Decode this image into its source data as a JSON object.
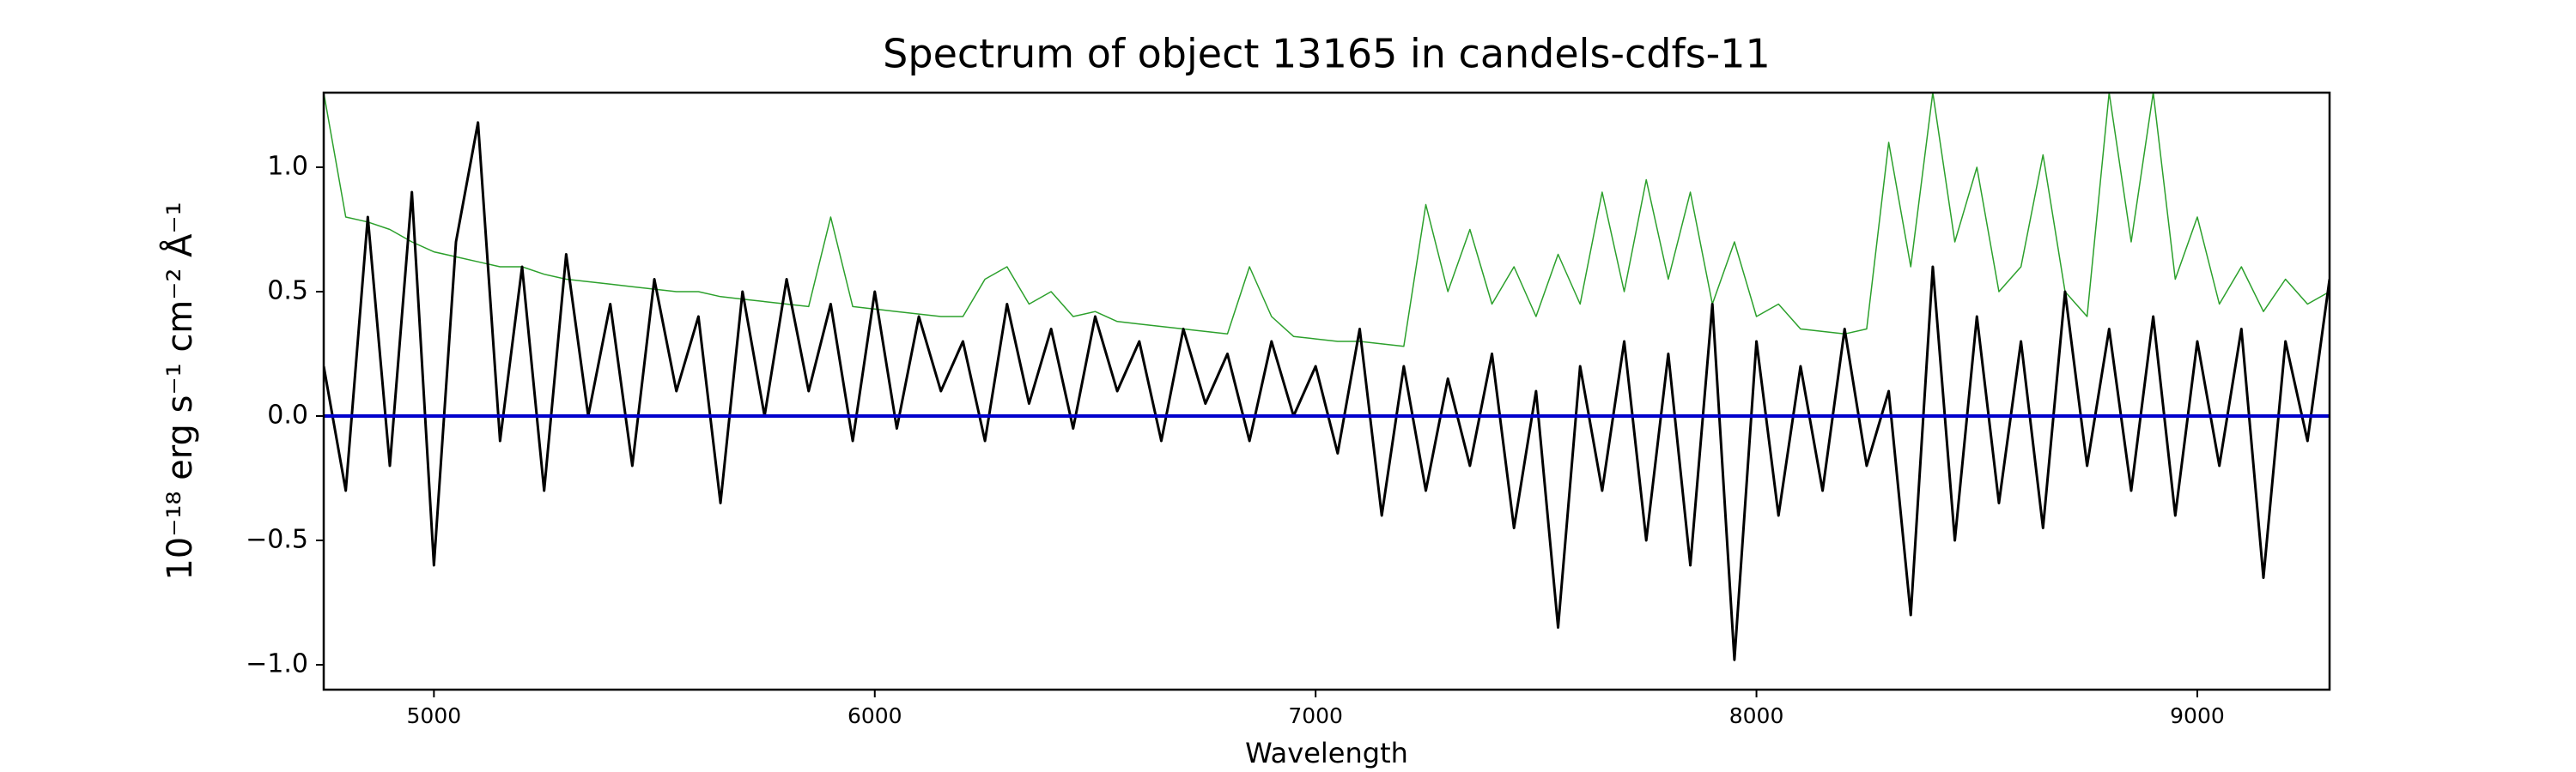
{
  "chart_data": {
    "type": "line",
    "title": "Spectrum of object 13165 in candels-cdfs-11",
    "xlabel": "Wavelength",
    "ylabel": "10⁻¹⁸ erg s⁻¹ cm⁻² Å⁻¹",
    "xlim": [
      4750,
      9300
    ],
    "ylim": [
      -1.1,
      1.3
    ],
    "xticks": [
      5000,
      6000,
      7000,
      8000,
      9000
    ],
    "yticks": [
      {
        "value": -1.0,
        "label": "−1.0"
      },
      {
        "value": -0.5,
        "label": "−0.5"
      },
      {
        "value": 0.0,
        "label": "0.0"
      },
      {
        "value": 0.5,
        "label": "0.5"
      },
      {
        "value": 1.0,
        "label": "1.0"
      }
    ],
    "series": [
      {
        "color": "#2ca02c",
        "width": 1.5,
        "x": [
          4750,
          4800,
          4850,
          4900,
          4950,
          5000,
          5050,
          5100,
          5150,
          5200,
          5250,
          5300,
          5350,
          5400,
          5450,
          5500,
          5550,
          5600,
          5650,
          5700,
          5750,
          5800,
          5850,
          5900,
          5950,
          6000,
          6050,
          6100,
          6150,
          6200,
          6250,
          6300,
          6350,
          6400,
          6450,
          6500,
          6550,
          6600,
          6650,
          6700,
          6750,
          6800,
          6850,
          6900,
          6950,
          7000,
          7050,
          7100,
          7150,
          7200,
          7250,
          7300,
          7350,
          7400,
          7450,
          7500,
          7550,
          7600,
          7650,
          7700,
          7750,
          7800,
          7850,
          7900,
          7950,
          8000,
          8050,
          8100,
          8150,
          8200,
          8250,
          8300,
          8350,
          8400,
          8450,
          8500,
          8550,
          8600,
          8650,
          8700,
          8750,
          8800,
          8850,
          8900,
          8950,
          9000,
          9050,
          9100,
          9150,
          9200,
          9250,
          9300
        ],
        "values": [
          1.3,
          0.8,
          0.78,
          0.75,
          0.7,
          0.66,
          0.64,
          0.62,
          0.6,
          0.6,
          0.57,
          0.55,
          0.54,
          0.53,
          0.52,
          0.51,
          0.5,
          0.5,
          0.48,
          0.47,
          0.46,
          0.45,
          0.44,
          0.8,
          0.44,
          0.43,
          0.42,
          0.41,
          0.4,
          0.4,
          0.55,
          0.6,
          0.45,
          0.5,
          0.4,
          0.42,
          0.38,
          0.37,
          0.36,
          0.35,
          0.34,
          0.33,
          0.6,
          0.4,
          0.32,
          0.31,
          0.3,
          0.3,
          0.29,
          0.28,
          0.85,
          0.5,
          0.75,
          0.45,
          0.6,
          0.4,
          0.65,
          0.45,
          0.9,
          0.5,
          0.95,
          0.55,
          0.9,
          0.45,
          0.7,
          0.4,
          0.45,
          0.35,
          0.34,
          0.33,
          0.35,
          1.1,
          0.6,
          1.3,
          0.7,
          1.0,
          0.5,
          0.6,
          1.05,
          0.5,
          0.4,
          1.3,
          0.7,
          1.3,
          0.55,
          0.8,
          0.45,
          0.6,
          0.42,
          0.55,
          0.45,
          0.5
        ]
      },
      {
        "color": "#000000",
        "width": 3,
        "x": [
          4750,
          4800,
          4850,
          4900,
          4950,
          5000,
          5050,
          5100,
          5150,
          5200,
          5250,
          5300,
          5350,
          5400,
          5450,
          5500,
          5550,
          5600,
          5650,
          5700,
          5750,
          5800,
          5850,
          5900,
          5950,
          6000,
          6050,
          6100,
          6150,
          6200,
          6250,
          6300,
          6350,
          6400,
          6450,
          6500,
          6550,
          6600,
          6650,
          6700,
          6750,
          6800,
          6850,
          6900,
          6950,
          7000,
          7050,
          7100,
          7150,
          7200,
          7250,
          7300,
          7350,
          7400,
          7450,
          7500,
          7550,
          7600,
          7650,
          7700,
          7750,
          7800,
          7850,
          7900,
          7950,
          8000,
          8050,
          8100,
          8150,
          8200,
          8250,
          8300,
          8350,
          8400,
          8450,
          8500,
          8550,
          8600,
          8650,
          8700,
          8750,
          8800,
          8850,
          8900,
          8950,
          9000,
          9050,
          9100,
          9150,
          9200,
          9250,
          9300
        ],
        "values": [
          0.2,
          -0.3,
          0.8,
          -0.2,
          0.9,
          -0.6,
          0.7,
          1.18,
          -0.1,
          0.6,
          -0.3,
          0.65,
          0.0,
          0.45,
          -0.2,
          0.55,
          0.1,
          0.4,
          -0.35,
          0.5,
          0.0,
          0.55,
          0.1,
          0.45,
          -0.1,
          0.5,
          -0.05,
          0.4,
          0.1,
          0.3,
          -0.1,
          0.45,
          0.05,
          0.35,
          -0.05,
          0.4,
          0.1,
          0.3,
          -0.1,
          0.35,
          0.05,
          0.25,
          -0.1,
          0.3,
          0.0,
          0.2,
          -0.15,
          0.35,
          -0.4,
          0.2,
          -0.3,
          0.15,
          -0.2,
          0.25,
          -0.45,
          0.1,
          -0.85,
          0.2,
          -0.3,
          0.3,
          -0.5,
          0.25,
          -0.6,
          0.45,
          -0.98,
          0.3,
          -0.4,
          0.2,
          -0.3,
          0.35,
          -0.2,
          0.1,
          -0.8,
          0.6,
          -0.5,
          0.4,
          -0.35,
          0.3,
          -0.45,
          0.5,
          -0.2,
          0.35,
          -0.3,
          0.4,
          -0.4,
          0.3,
          -0.2,
          0.35,
          -0.65,
          0.3,
          -0.1,
          0.55
        ]
      },
      {
        "color": "#0000cc",
        "width": 4,
        "x": [
          4750,
          9300
        ],
        "values": [
          0,
          0
        ]
      }
    ]
  }
}
